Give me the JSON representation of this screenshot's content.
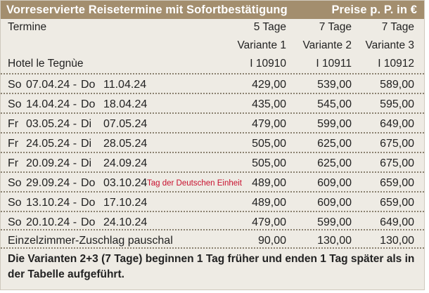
{
  "header": {
    "title": "Vorreservierte Reisetermine mit Sofortbestätigung",
    "prices_note": "Preise p. P. in €"
  },
  "columns": {
    "termine_label": "Termine",
    "hotel_label": "Hotel le Tegnùe",
    "variants": [
      {
        "duration": "5 Tage",
        "name": "Variante 1",
        "code": "I 10910"
      },
      {
        "duration": "7 Tage",
        "name": "Variante 2",
        "code": "I 10911"
      },
      {
        "duration": "7 Tage",
        "name": "Variante 3",
        "code": "I 10912"
      }
    ]
  },
  "rows": [
    {
      "wd_from": "So",
      "from": "07.04.24 -",
      "wd_to": "Do",
      "to": "11.04.24",
      "note": "",
      "p1": "429,00",
      "p2": "539,00",
      "p3": "589,00"
    },
    {
      "wd_from": "So",
      "from": "14.04.24 -",
      "wd_to": "Do",
      "to": "18.04.24",
      "note": "",
      "p1": "435,00",
      "p2": "545,00",
      "p3": "595,00"
    },
    {
      "wd_from": "Fr",
      "from": "03.05.24 -",
      "wd_to": "Di",
      "to": "07.05.24",
      "note": "",
      "p1": "479,00",
      "p2": "599,00",
      "p3": "649,00"
    },
    {
      "wd_from": "Fr",
      "from": "24.05.24 -",
      "wd_to": "Di",
      "to": "28.05.24",
      "note": "",
      "p1": "505,00",
      "p2": "625,00",
      "p3": "675,00"
    },
    {
      "wd_from": "Fr",
      "from": "20.09.24 -",
      "wd_to": "Di",
      "to": "24.09.24",
      "note": "",
      "p1": "505,00",
      "p2": "625,00",
      "p3": "675,00"
    },
    {
      "wd_from": "So",
      "from": "29.09.24 -",
      "wd_to": "Do",
      "to": "03.10.24",
      "note": "Tag der Deutschen Einheit",
      "p1": "489,00",
      "p2": "609,00",
      "p3": "659,00"
    },
    {
      "wd_from": "So",
      "from": "13.10.24 -",
      "wd_to": "Do",
      "to": "17.10.24",
      "note": "",
      "p1": "489,00",
      "p2": "609,00",
      "p3": "659,00"
    },
    {
      "wd_from": "So",
      "from": "20.10.24 -",
      "wd_to": "Do",
      "to": "24.10.24",
      "note": "",
      "p1": "479,00",
      "p2": "599,00",
      "p3": "649,00"
    }
  ],
  "surcharge": {
    "label": "Einzelzimmer-Zuschlag pauschal",
    "p1": "90,00",
    "p2": "130,00",
    "p3": "130,00"
  },
  "footer_note": "Die Varianten 2+3 (7 Tage) beginnen 1 Tag früher und enden 1 Tag später als in der Tabelle aufgeführt.",
  "colors": {
    "header_bg": "#a38e6e",
    "panel_bg": "#eeebe4",
    "note_red": "#c8102e"
  }
}
